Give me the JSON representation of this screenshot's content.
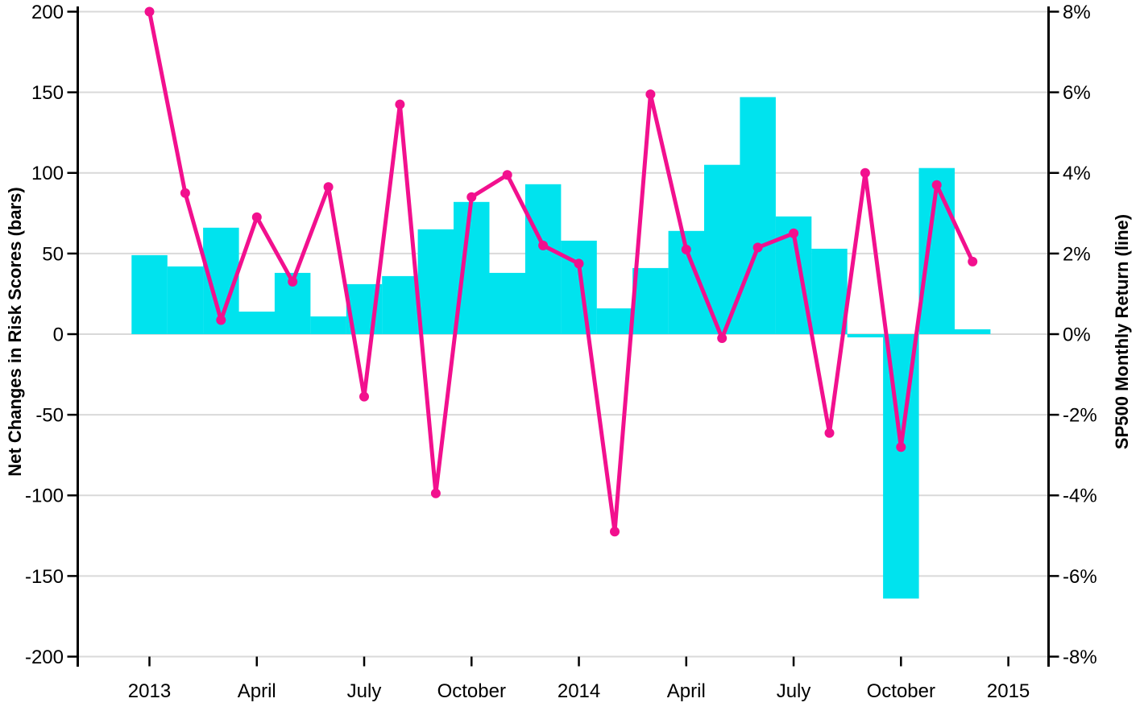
{
  "chart_data": {
    "type": "combo-bar-line",
    "title": "",
    "categories": [
      "Jan 2013",
      "Feb 2013",
      "Mar 2013",
      "Apr 2013",
      "May 2013",
      "Jun 2013",
      "Jul 2013",
      "Aug 2013",
      "Sep 2013",
      "Oct 2013",
      "Nov 2013",
      "Dec 2013",
      "Jan 2014",
      "Feb 2014",
      "Mar 2014",
      "Apr 2014",
      "May 2014",
      "Jun 2014",
      "Jul 2014",
      "Aug 2014",
      "Sep 2014",
      "Oct 2014",
      "Nov 2014",
      "Dec 2014"
    ],
    "series": [
      {
        "name": "Net Changes in Risk Scores",
        "type": "bar",
        "axis": "left",
        "values": [
          49,
          42,
          66,
          14,
          38,
          11,
          31,
          36,
          65,
          82,
          38,
          93,
          58,
          16,
          41,
          64,
          105,
          147,
          73,
          53,
          -2,
          -164,
          103,
          3
        ]
      },
      {
        "name": "SP500 Monthly Return",
        "type": "line",
        "axis": "right",
        "values_percent": [
          8.0,
          3.5,
          0.35,
          2.9,
          1.3,
          3.65,
          -1.55,
          5.7,
          -3.95,
          3.4,
          3.95,
          2.2,
          1.75,
          -4.9,
          5.95,
          2.1,
          -0.1,
          2.15,
          2.5,
          -2.45,
          4.0,
          -2.8,
          3.7,
          1.8
        ]
      }
    ],
    "left_axis": {
      "title": "Net Changes in Risk Scores (bars)",
      "ticks": [
        200,
        150,
        100,
        50,
        0,
        -50,
        -100,
        -150,
        -200
      ],
      "range": [
        -200,
        200
      ]
    },
    "right_axis": {
      "title": "SP500 Monthly Return (line)",
      "ticks": [
        8,
        6,
        4,
        2,
        0,
        -2,
        -4,
        -6,
        -8
      ],
      "tick_suffix": "%",
      "range_percent": [
        -8,
        8
      ]
    },
    "x_axis": {
      "tick_labels": [
        "2013",
        "April",
        "July",
        "October",
        "2014",
        "April",
        "July",
        "October",
        "2015"
      ],
      "tick_month_indices": [
        0,
        3,
        6,
        9,
        12,
        15,
        18,
        21,
        24
      ]
    },
    "legend": "none",
    "grid": "horizontal"
  },
  "colors": {
    "bar": "#00E3EE",
    "line": "#F2108E",
    "grid": "#D9D9D9",
    "axis": "#000000",
    "text": "#000000",
    "background": "#FFFFFF"
  }
}
